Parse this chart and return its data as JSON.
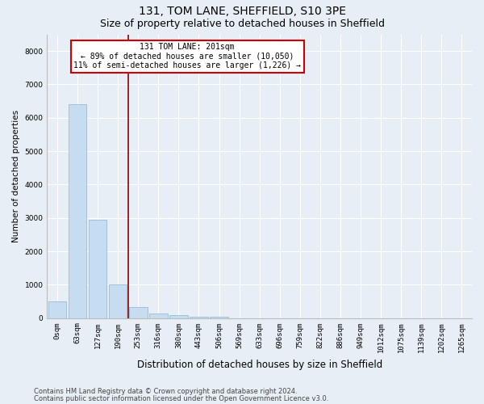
{
  "title1": "131, TOM LANE, SHEFFIELD, S10 3PE",
  "title2": "Size of property relative to detached houses in Sheffield",
  "xlabel": "Distribution of detached houses by size in Sheffield",
  "ylabel": "Number of detached properties",
  "footnote1": "Contains HM Land Registry data © Crown copyright and database right 2024.",
  "footnote2": "Contains public sector information licensed under the Open Government Licence v3.0.",
  "categories": [
    "0sqm",
    "63sqm",
    "127sqm",
    "190sqm",
    "253sqm",
    "316sqm",
    "380sqm",
    "443sqm",
    "506sqm",
    "569sqm",
    "633sqm",
    "696sqm",
    "759sqm",
    "822sqm",
    "886sqm",
    "949sqm",
    "1012sqm",
    "1075sqm",
    "1139sqm",
    "1202sqm",
    "1265sqm"
  ],
  "values": [
    500,
    6400,
    2950,
    1000,
    330,
    130,
    80,
    50,
    30,
    0,
    0,
    0,
    0,
    0,
    0,
    0,
    0,
    0,
    0,
    0,
    0
  ],
  "bar_color": "#c6dcf0",
  "bar_edge_color": "#8ab4d4",
  "vline_x_pos": 3.5,
  "vline_color": "#8b0000",
  "vline_lw": 1.2,
  "annotation_title": "131 TOM LANE: 201sqm",
  "annotation_line1": "← 89% of detached houses are smaller (10,050)",
  "annotation_line2": "11% of semi-detached houses are larger (1,226) →",
  "annotation_box_color": "#ffffff",
  "annotation_box_edge": "#cc0000",
  "ylim": [
    0,
    8500
  ],
  "yticks": [
    0,
    1000,
    2000,
    3000,
    4000,
    5000,
    6000,
    7000,
    8000
  ],
  "background_color": "#e8eef5",
  "plot_bg_color": "#e8eef5",
  "grid_color": "#ffffff",
  "title1_fontsize": 10,
  "title2_fontsize": 9,
  "tick_fontsize": 6.5,
  "ylabel_fontsize": 7.5,
  "xlabel_fontsize": 8.5,
  "footnote_fontsize": 6
}
